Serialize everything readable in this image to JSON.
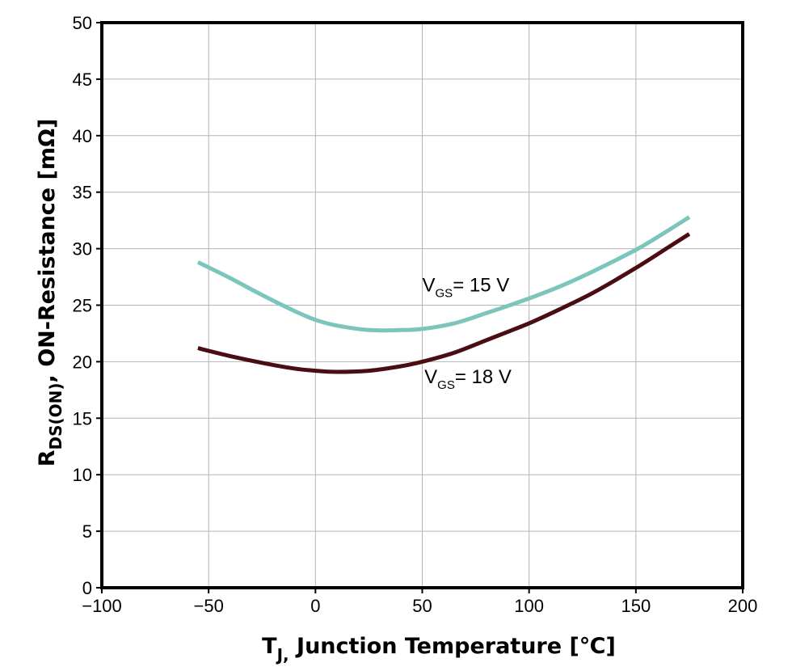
{
  "chart_data": {
    "type": "line",
    "title": "",
    "xlabel": {
      "main": "T",
      "sub": "J,",
      "rest": " Junction Temperature [℃]"
    },
    "ylabel": {
      "main": "R",
      "sub": "DS(ON)",
      "rest": ", ON-Resistance [mΩ]"
    },
    "xlim": [
      -100,
      200
    ],
    "ylim": [
      0,
      50
    ],
    "xticks": [
      -100,
      -50,
      0,
      50,
      100,
      150,
      200
    ],
    "yticks": [
      0,
      5,
      10,
      15,
      20,
      25,
      30,
      35,
      40,
      45,
      50
    ],
    "grid": true,
    "series": [
      {
        "label_main": "V",
        "label_sub": "GS",
        "label_rest": "= 15 V",
        "color": "#7cc5bd",
        "label_anchor": [
          50,
          26.2
        ],
        "points": [
          [
            -55,
            28.8
          ],
          [
            -40,
            27.4
          ],
          [
            -25,
            25.9
          ],
          [
            -10,
            24.5
          ],
          [
            0,
            23.7
          ],
          [
            10,
            23.2
          ],
          [
            25,
            22.8
          ],
          [
            40,
            22.8
          ],
          [
            50,
            22.9
          ],
          [
            65,
            23.4
          ],
          [
            80,
            24.3
          ],
          [
            100,
            25.6
          ],
          [
            115,
            26.7
          ],
          [
            130,
            28.0
          ],
          [
            150,
            29.9
          ],
          [
            165,
            31.6
          ],
          [
            175,
            32.8
          ]
        ]
      },
      {
        "label_main": "V",
        "label_sub": "GS",
        "label_rest": "= 18 V",
        "color": "#4a0d12",
        "label_anchor": [
          51,
          18.1
        ],
        "points": [
          [
            -55,
            21.2
          ],
          [
            -40,
            20.5
          ],
          [
            -25,
            19.9
          ],
          [
            -10,
            19.4
          ],
          [
            0,
            19.2
          ],
          [
            10,
            19.1
          ],
          [
            25,
            19.2
          ],
          [
            40,
            19.6
          ],
          [
            50,
            20.0
          ],
          [
            65,
            20.8
          ],
          [
            80,
            21.9
          ],
          [
            100,
            23.4
          ],
          [
            115,
            24.7
          ],
          [
            130,
            26.1
          ],
          [
            150,
            28.3
          ],
          [
            165,
            30.1
          ],
          [
            175,
            31.3
          ]
        ]
      }
    ]
  }
}
